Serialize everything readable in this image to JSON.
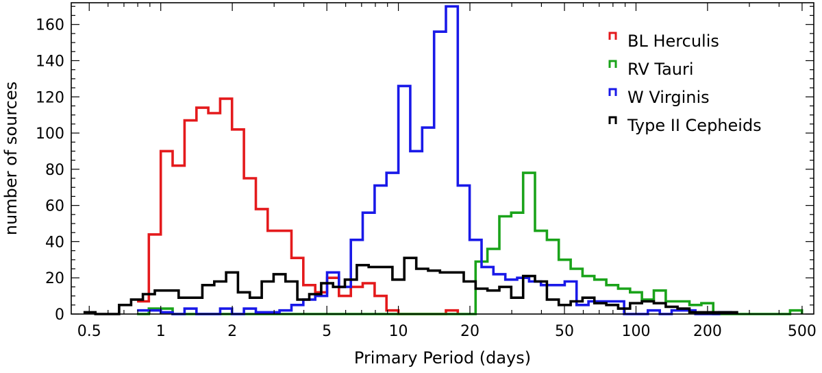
{
  "chart_data": {
    "type": "histogram-step",
    "xlabel": "Primary Period (days)",
    "ylabel": "number of sources",
    "xscale": "log",
    "xlim": [
      0.42,
      560
    ],
    "ylim": [
      0,
      172
    ],
    "x_ticks": [
      0.5,
      1,
      2,
      5,
      10,
      20,
      50,
      100,
      200,
      500
    ],
    "x_tick_labels": [
      "0.5",
      "1",
      "2",
      "5",
      "10",
      "20",
      "50",
      "100",
      "200",
      "500"
    ],
    "y_ticks": [
      0,
      20,
      40,
      60,
      80,
      100,
      120,
      140,
      160
    ],
    "y_tick_labels": [
      "0",
      "20",
      "40",
      "60",
      "80",
      "100",
      "120",
      "140",
      "160"
    ],
    "legend_position": "top-right",
    "series": [
      {
        "name": "BL Herculis",
        "color": "#e41a1c",
        "x": [
          0.795,
          0.891,
          1.0,
          1.122,
          1.259,
          1.413,
          1.585,
          1.778,
          1.995,
          2.239,
          2.512,
          2.818,
          3.162,
          3.548,
          3.981,
          4.467,
          5.012,
          5.623,
          6.31,
          7.079,
          7.943,
          8.913,
          10.0,
          11.22,
          12.59,
          14.13,
          15.85,
          17.78
        ],
        "y": [
          7,
          44,
          90,
          82,
          107,
          114,
          111,
          119,
          102,
          75,
          58,
          46,
          46,
          31,
          16,
          12,
          20,
          10,
          15,
          17,
          10,
          2,
          0,
          0,
          0,
          0,
          2,
          0
        ]
      },
      {
        "name": "RV Tauri",
        "color": "#1aa31a",
        "x": [
          0.795,
          0.891,
          1.0,
          1.122,
          18.84,
          21.13,
          23.71,
          26.6,
          29.85,
          33.49,
          37.58,
          42.17,
          47.32,
          53.09,
          59.57,
          66.83,
          74.99,
          84.14,
          94.41,
          105.9,
          118.9,
          133.4,
          149.6,
          167.9,
          188.4,
          211.3,
          396.7,
          445.1,
          499.4
        ],
        "y": [
          0,
          3,
          3,
          0,
          0,
          29,
          36,
          54,
          56,
          78,
          46,
          41,
          30,
          25,
          21,
          19,
          16,
          14,
          12,
          8,
          13,
          7,
          7,
          5,
          6,
          0,
          0,
          2,
          0
        ]
      },
      {
        "name": "W Virginis",
        "color": "#1919e8",
        "x": [
          0.795,
          0.891,
          1.0,
          1.122,
          1.259,
          1.413,
          1.585,
          1.778,
          1.995,
          2.239,
          2.512,
          2.818,
          3.162,
          3.548,
          3.981,
          4.467,
          5.012,
          5.623,
          6.31,
          7.079,
          7.943,
          8.913,
          10.0,
          11.22,
          12.59,
          14.13,
          15.85,
          17.78,
          19.95,
          22.39,
          25.12,
          28.18,
          31.62,
          35.48,
          39.81,
          44.67,
          50.12,
          56.23,
          63.1,
          70.79,
          79.43,
          89.13,
          100.0,
          112.2,
          125.9,
          141.3,
          158.5,
          177.8,
          199.5,
          223.9,
          251.2
        ],
        "y": [
          2,
          2,
          1,
          0,
          3,
          0,
          0,
          3,
          0,
          3,
          1,
          1,
          2,
          5,
          8,
          10,
          23,
          15,
          41,
          56,
          71,
          78,
          126,
          90,
          103,
          156,
          170,
          71,
          41,
          26,
          22,
          19,
          20,
          18,
          16,
          16,
          18,
          5,
          7,
          7,
          7,
          0,
          0,
          2,
          0,
          2,
          2,
          0,
          0,
          1,
          0
        ]
      },
      {
        "name": "Type II Cepheids",
        "color": "#000000",
        "x": [
          0.473,
          0.531,
          0.596,
          0.668,
          0.75,
          0.841,
          0.944,
          1.059,
          1.189,
          1.334,
          1.496,
          1.679,
          1.884,
          2.113,
          2.371,
          2.661,
          2.985,
          3.35,
          3.758,
          4.217,
          4.732,
          5.309,
          5.957,
          6.683,
          7.499,
          8.414,
          9.441,
          10.59,
          11.89,
          13.34,
          14.96,
          16.79,
          18.84,
          21.13,
          23.71,
          26.6,
          29.85,
          33.49,
          37.58,
          42.17,
          47.32,
          53.09,
          59.57,
          66.83,
          74.99,
          84.14,
          94.41,
          105.9,
          118.9,
          133.4,
          149.6,
          167.9,
          188.4,
          211.3,
          237.1,
          266.1
        ],
        "y": [
          1,
          0,
          0,
          5,
          8,
          11,
          13,
          13,
          9,
          9,
          16,
          18,
          23,
          12,
          9,
          18,
          22,
          18,
          8,
          11,
          17,
          15,
          19,
          27,
          26,
          26,
          19,
          31,
          25,
          24,
          23,
          23,
          18,
          14,
          13,
          15,
          9,
          21,
          18,
          8,
          5,
          7,
          9,
          6,
          5,
          3,
          6,
          7,
          6,
          4,
          3,
          1,
          1,
          1,
          1,
          0
        ]
      }
    ]
  }
}
